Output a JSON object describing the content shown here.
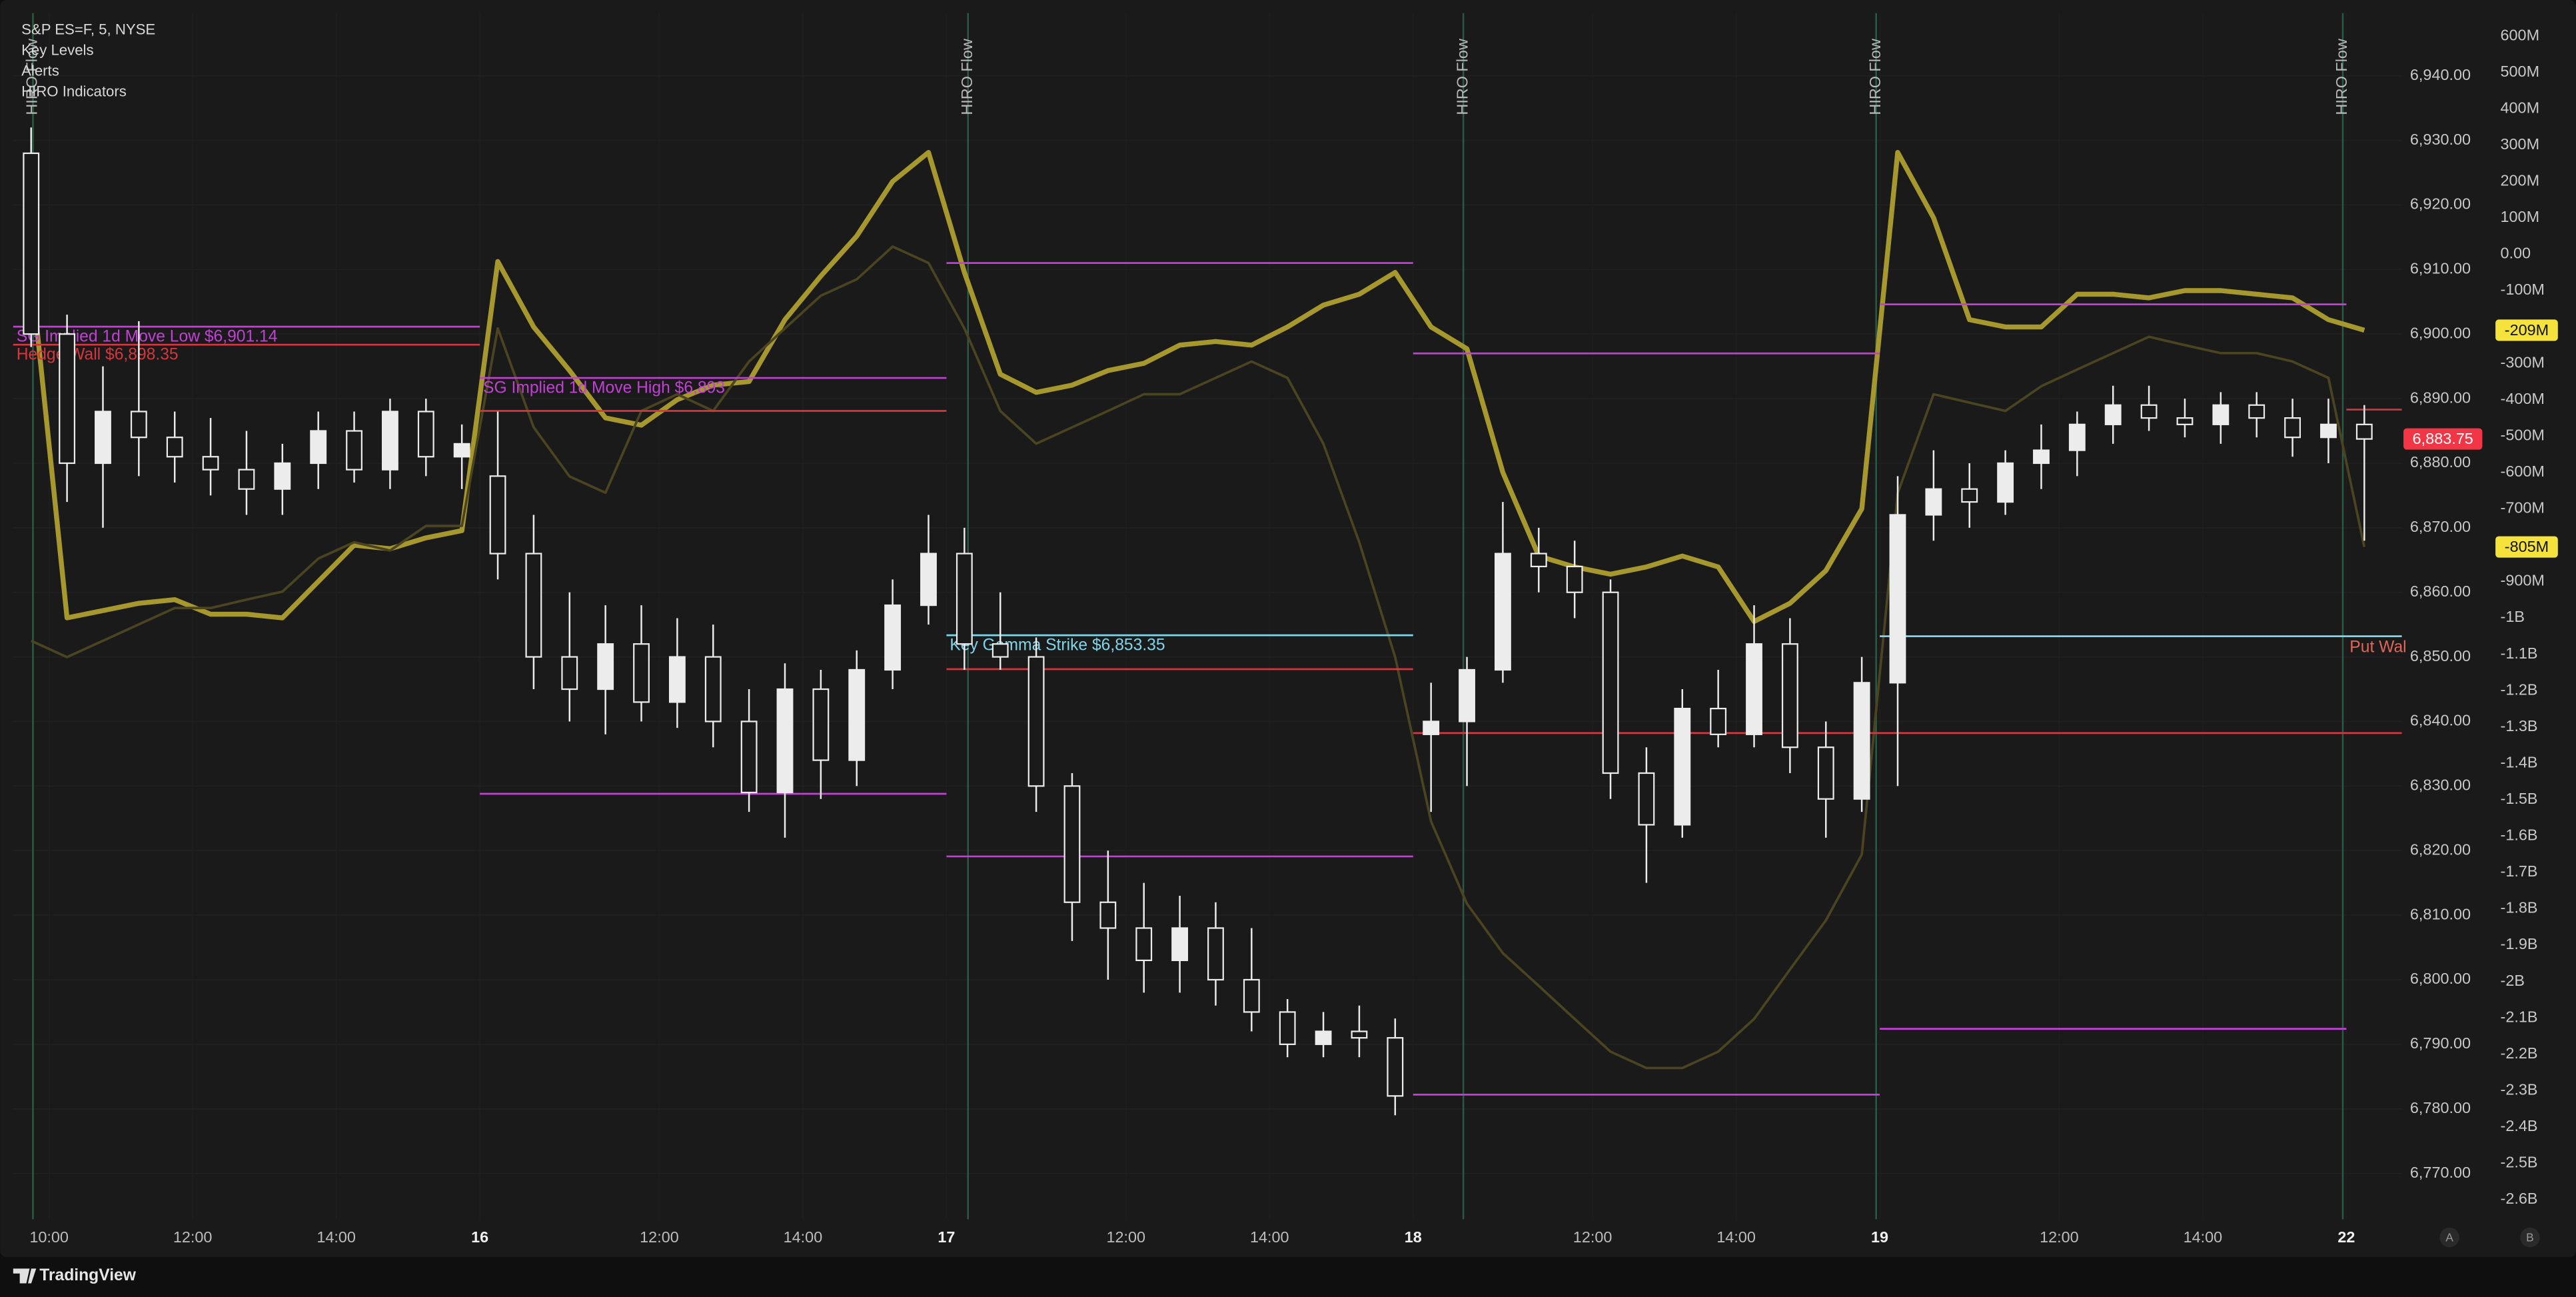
{
  "chart_data": {
    "type": "candlestick",
    "indicators": [
      "S&P ES=F, 5, NYSE",
      "Key Levels",
      "Alerts",
      "HIRO Indicators"
    ],
    "brand": "TradingView",
    "buttons": [
      "A",
      "B"
    ],
    "categories": [
      null,
      "10:00",
      null,
      null,
      null,
      "12:00",
      null,
      null,
      null,
      "14:00",
      null,
      null,
      null,
      "16",
      null,
      null,
      null,
      null,
      "12:00",
      null,
      null,
      null,
      "14:00",
      null,
      null,
      null,
      "17",
      null,
      null,
      null,
      null,
      "12:00",
      null,
      null,
      null,
      "14:00",
      null,
      null,
      null,
      "18",
      null,
      null,
      null,
      null,
      "12:00",
      null,
      null,
      null,
      "14:00",
      null,
      null,
      null,
      "19",
      null,
      null,
      null,
      null,
      "12:00",
      null,
      null,
      null,
      "14:00",
      null,
      null,
      null,
      "22"
    ],
    "open": [
      6928,
      6900,
      6880,
      6888,
      6884,
      6881,
      6879,
      6876,
      6880,
      6885,
      6879,
      6888,
      6881,
      6878,
      6866,
      6850,
      6845,
      6852,
      6843,
      6850,
      6840,
      6829,
      6845,
      6834,
      6848,
      6858,
      6866,
      6852,
      6850,
      6830,
      6812,
      6808,
      6803,
      6808,
      6800,
      6795,
      6790,
      6792,
      6791,
      6838,
      6840,
      6848,
      6866,
      6864,
      6860,
      6832,
      6824,
      6842,
      6838,
      6852,
      6836,
      6828,
      6846,
      6872,
      6876,
      6874,
      6880,
      6882,
      6886,
      6889,
      6887,
      6886,
      6889,
      6887,
      6884,
      6886
    ],
    "high": [
      6932,
      6903,
      6895,
      6902,
      6888,
      6887,
      6885,
      6883,
      6888,
      6888,
      6890,
      6890,
      6886,
      6888,
      6872,
      6860,
      6858,
      6858,
      6856,
      6855,
      6845,
      6849,
      6848,
      6851,
      6862,
      6872,
      6870,
      6860,
      6853,
      6832,
      6820,
      6815,
      6813,
      6812,
      6808,
      6797,
      6795,
      6796,
      6794,
      6846,
      6850,
      6874,
      6870,
      6868,
      6862,
      6836,
      6845,
      6848,
      6858,
      6856,
      6840,
      6850,
      6878,
      6882,
      6880,
      6882,
      6886,
      6888,
      6892,
      6892,
      6890,
      6891,
      6891,
      6890,
      6890,
      6889
    ],
    "low": [
      6898,
      6874,
      6870,
      6878,
      6877,
      6875,
      6872,
      6872,
      6876,
      6877,
      6876,
      6878,
      6876,
      6862,
      6845,
      6840,
      6838,
      6840,
      6839,
      6836,
      6826,
      6822,
      6828,
      6830,
      6845,
      6855,
      6848,
      6848,
      6826,
      6806,
      6800,
      6798,
      6798,
      6796,
      6792,
      6788,
      6788,
      6788,
      6779,
      6826,
      6830,
      6846,
      6860,
      6856,
      6828,
      6815,
      6822,
      6836,
      6836,
      6832,
      6822,
      6826,
      6830,
      6868,
      6870,
      6872,
      6876,
      6878,
      6883,
      6885,
      6884,
      6883,
      6884,
      6881,
      6880,
      6868
    ],
    "close": [
      6900,
      6880,
      6888,
      6884,
      6881,
      6879,
      6876,
      6880,
      6885,
      6879,
      6888,
      6881,
      6883,
      6866,
      6850,
      6845,
      6852,
      6843,
      6850,
      6840,
      6829,
      6845,
      6834,
      6848,
      6858,
      6866,
      6852,
      6850,
      6830,
      6812,
      6808,
      6803,
      6808,
      6800,
      6795,
      6790,
      6792,
      6791,
      6782,
      6840,
      6848,
      6866,
      6864,
      6860,
      6832,
      6824,
      6842,
      6838,
      6852,
      6836,
      6828,
      6846,
      6872,
      6876,
      6874,
      6880,
      6882,
      6886,
      6889,
      6887,
      6886,
      6889,
      6887,
      6884,
      6886,
      6883.75
    ],
    "up_color": "#ececec",
    "down_color": "#ececec",
    "price_tag": {
      "value": 6883.75,
      "label": "6,883.75",
      "color": "#f23645"
    },
    "series": [
      {
        "color": "#a6982c",
        "axis": "y2",
        "values": [
          -50,
          -1000,
          -980,
          -960,
          -950,
          -990,
          -990,
          -1000,
          -900,
          -800,
          -810,
          -780,
          -760,
          -20,
          -200,
          -320,
          -450,
          -470,
          -400,
          -360,
          -350,
          -180,
          -60,
          50,
          200,
          280,
          -50,
          -330,
          -380,
          -360,
          -320,
          -300,
          -250,
          -240,
          -250,
          -200,
          -140,
          -110,
          -50,
          -200,
          -260,
          -600,
          -830,
          -860,
          -880,
          -860,
          -830,
          -860,
          -1010,
          -960,
          -870,
          -700,
          280,
          100,
          -180,
          -200,
          -200,
          -110,
          -110,
          -120,
          -100,
          -100,
          -110,
          -120,
          -180,
          -209
        ],
        "last_label": {
          "value": -209,
          "label": "-209M"
        }
      },
      {
        "color": "#4a4421",
        "axis": "y2",
        "values": [
          -1063,
          -1108,
          -1063,
          -1018,
          -973,
          -973,
          -950,
          -928,
          -837,
          -792,
          -815,
          -747,
          -747,
          -204,
          -476,
          -611,
          -656,
          -431,
          -385,
          -431,
          -295,
          -204,
          -114,
          -69,
          21,
          -24,
          -204,
          -431,
          -521,
          -476,
          -431,
          -385,
          -385,
          -340,
          -295,
          -340,
          -521,
          -792,
          -1108,
          -1560,
          -1786,
          -1922,
          -2012,
          -2103,
          -2193,
          -2238,
          -2238,
          -2193,
          -2103,
          -1967,
          -1832,
          -1651,
          -657,
          -385,
          -408,
          -431,
          -363,
          -317,
          -272,
          -227,
          -250,
          -272,
          -272,
          -295,
          -340,
          -805
        ],
        "last_label": {
          "value": -805,
          "label": "-805M"
        }
      }
    ],
    "tag_color": "#f5e33b",
    "levels": [
      {
        "label": "SG Implied 1d Move Low $6,901.14",
        "value": 6901.14,
        "color": "#c33fd6",
        "from": 0,
        "to": 13
      },
      {
        "label": "Hedge Wall $6,898.35",
        "value": 6898.35,
        "color": "#d8353d",
        "from": 0,
        "to": 13
      },
      {
        "label": "SG Implied 1d Move High $6,893",
        "value": 6893.2,
        "color": "#c33fd6",
        "from": 13,
        "to": 26
      },
      {
        "value": 6888.1,
        "color": "#d8353d",
        "from": 13,
        "to": 26
      },
      {
        "value": 6828.8,
        "color": "#c33fd6",
        "from": 13,
        "to": 26
      },
      {
        "value": 6911.0,
        "color": "#c33fd6",
        "from": 26,
        "to": 39
      },
      {
        "label": "Key Gamma Strike $6,853.35",
        "value": 6853.35,
        "color": "#7fd6ea",
        "from": 26,
        "to": 39
      },
      {
        "value": 6848.1,
        "color": "#d8353d",
        "from": 26,
        "to": 39
      },
      {
        "value": 6819.1,
        "color": "#c33fd6",
        "from": 26,
        "to": 39
      },
      {
        "value": 6897.0,
        "color": "#c33fd6",
        "from": 39,
        "to": 52
      },
      {
        "value": 6838.2,
        "color": "#d8353d",
        "from": 39,
        "to": 52
      },
      {
        "value": 6782.2,
        "color": "#c33fd6",
        "from": 39,
        "to": 52
      },
      {
        "value": 6904.6,
        "color": "#c33fd6",
        "from": 52,
        "to": 65
      },
      {
        "value": 6853.2,
        "color": "#7fd6ea",
        "from": 52,
        "to": 65
      },
      {
        "value": 6838.2,
        "color": "#d8353d",
        "from": 52
      },
      {
        "value": 6792.4,
        "color": "#c33fd6",
        "from": 52,
        "to": 65
      },
      {
        "label": "Put Wal",
        "value": 6853.2,
        "color": "#7fd6ea",
        "label_color": "#e0665a",
        "from": 65
      },
      {
        "value": 6888.3,
        "color": "#d8353d",
        "from": 65
      }
    ],
    "events": [
      {
        "label": "HIRO Flow",
        "at": 0.55
      },
      {
        "label": "HIRO Flow",
        "at": 26.6
      },
      {
        "label": "HIRO Flow",
        "at": 40.4
      },
      {
        "label": "HIRO Flow",
        "at": 51.9
      },
      {
        "label": "HIRO Flow",
        "at": 64.9
      }
    ],
    "event_color": "#2c5a46",
    "ylim": [
      6762.9,
      6949.7
    ],
    "yticks": [
      {
        "value": 6940,
        "label": "6,940.00"
      },
      {
        "value": 6930,
        "label": "6,930.00"
      },
      {
        "value": 6920,
        "label": "6,920.00"
      },
      {
        "value": 6910,
        "label": "6,910.00"
      },
      {
        "value": 6900,
        "label": "6,900.00"
      },
      {
        "value": 6890,
        "label": "6,890.00"
      },
      {
        "value": 6880,
        "label": "6,880.00"
      },
      {
        "value": 6870,
        "label": "6,870.00"
      },
      {
        "value": 6860,
        "label": "6,860.00"
      },
      {
        "value": 6850,
        "label": "6,850.00"
      },
      {
        "value": 6840,
        "label": "6,840.00"
      },
      {
        "value": 6830,
        "label": "6,830.00"
      },
      {
        "value": 6820,
        "label": "6,820.00"
      },
      {
        "value": 6810,
        "label": "6,810.00"
      },
      {
        "value": 6800,
        "label": "6,800.00"
      },
      {
        "value": 6790,
        "label": "6,790.00"
      },
      {
        "value": 6780,
        "label": "6,780.00"
      },
      {
        "value": 6770,
        "label": "6,770.00"
      }
    ],
    "y2lim": [
      -2654,
      663
    ],
    "y2ticks": [
      {
        "value": 600,
        "label": "600M"
      },
      {
        "value": 500,
        "label": "500M"
      },
      {
        "value": 400,
        "label": "400M"
      },
      {
        "value": 300,
        "label": "300M"
      },
      {
        "value": 200,
        "label": "200M"
      },
      {
        "value": 100,
        "label": "100M"
      },
      {
        "value": 0,
        "label": "0.00"
      },
      {
        "value": -100,
        "label": "-100M"
      },
      {
        "value": -200,
        "label": "-200M"
      },
      {
        "value": -300,
        "label": "-300M"
      },
      {
        "value": -400,
        "label": "-400M"
      },
      {
        "value": -500,
        "label": "-500M"
      },
      {
        "value": -600,
        "label": "-600M"
      },
      {
        "value": -700,
        "label": "-700M"
      },
      {
        "value": -800,
        "label": "-800M"
      },
      {
        "value": -900,
        "label": "-900M"
      },
      {
        "value": -1000,
        "label": "-1B"
      },
      {
        "value": -1100,
        "label": "-1.1B"
      },
      {
        "value": -1200,
        "label": "-1.2B"
      },
      {
        "value": -1300,
        "label": "-1.3B"
      },
      {
        "value": -1400,
        "label": "-1.4B"
      },
      {
        "value": -1500,
        "label": "-1.5B"
      },
      {
        "value": -1600,
        "label": "-1.6B"
      },
      {
        "value": -1700,
        "label": "-1.7B"
      },
      {
        "value": -1800,
        "label": "-1.8B"
      },
      {
        "value": -1900,
        "label": "-1.9B"
      },
      {
        "value": -2000,
        "label": "-2B"
      },
      {
        "value": -2100,
        "label": "-2.1B"
      },
      {
        "value": -2200,
        "label": "-2.2B"
      },
      {
        "value": -2300,
        "label": "-2.3B"
      },
      {
        "value": -2400,
        "label": "-2.4B"
      },
      {
        "value": -2500,
        "label": "-2.5B"
      },
      {
        "value": -2600,
        "label": "-2.6B"
      }
    ],
    "grid": true
  }
}
